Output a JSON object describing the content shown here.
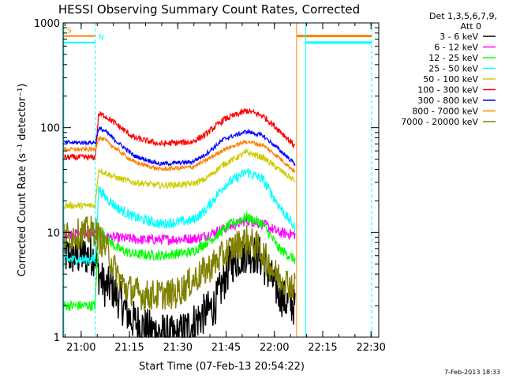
{
  "chart_data": {
    "type": "line",
    "title": "HESSI Observing Summary Count Rates, Corrected",
    "xlabel": "Start Time (07-Feb-13 20:54:22)",
    "ylabel": "Corrected Count Rate (s⁻¹ detector⁻¹)",
    "x_unit": "minutes since 20:54:22",
    "xlim": [
      0,
      98
    ],
    "ylim": [
      1,
      1000
    ],
    "y_scale": "log",
    "grid": false,
    "legend_position": "right",
    "x_ticks": [
      {
        "x": 5.6,
        "label": "21:00"
      },
      {
        "x": 20.6,
        "label": "21:15"
      },
      {
        "x": 35.6,
        "label": "21:30"
      },
      {
        "x": 50.6,
        "label": "21:45"
      },
      {
        "x": 65.6,
        "label": "22:00"
      },
      {
        "x": 80.6,
        "label": "22:15"
      },
      {
        "x": 95.6,
        "label": "22:30"
      }
    ],
    "y_ticks": [
      {
        "y": 1,
        "label": "1"
      },
      {
        "y": 10,
        "label": "10"
      },
      {
        "y": 100,
        "label": "100"
      },
      {
        "y": 1000,
        "label": "1000"
      }
    ],
    "legend_header": [
      "Det 1,3,5,6,7,9,",
      "Att 0"
    ],
    "series": [
      {
        "name": "3 - 6 keV",
        "color": "#000000",
        "noise": 0.2,
        "points": [
          [
            0,
            6
          ],
          [
            10,
            6
          ],
          [
            11,
            4
          ],
          [
            13,
            3
          ],
          [
            15,
            3
          ],
          [
            19,
            1.9
          ],
          [
            21,
            1.5
          ],
          [
            26,
            1.2
          ],
          [
            35,
            1
          ],
          [
            47,
            2
          ],
          [
            52,
            5
          ],
          [
            57,
            6.5
          ],
          [
            61,
            6
          ],
          [
            66,
            3
          ],
          [
            69,
            2.2
          ],
          [
            72,
            2
          ]
        ]
      },
      {
        "name": "6 - 12 keV",
        "color": "#ff00ff",
        "noise": 0.05,
        "points": [
          [
            0,
            9.5
          ],
          [
            11,
            10
          ],
          [
            13,
            9
          ],
          [
            19,
            8.8
          ],
          [
            25,
            8.5
          ],
          [
            35,
            8.6
          ],
          [
            42,
            8.8
          ],
          [
            52,
            11.5
          ],
          [
            57,
            13
          ],
          [
            62,
            12
          ],
          [
            67,
            10
          ],
          [
            72,
            9.5
          ]
        ]
      },
      {
        "name": "12 - 25 keV",
        "color": "#00ff00",
        "noise": 0.05,
        "points": [
          [
            0,
            2
          ],
          [
            10,
            2
          ],
          [
            11,
            11
          ],
          [
            13,
            9
          ],
          [
            17,
            7
          ],
          [
            22,
            6.2
          ],
          [
            30,
            6
          ],
          [
            40,
            6.5
          ],
          [
            47,
            9
          ],
          [
            52,
            12
          ],
          [
            57,
            14
          ],
          [
            62,
            12
          ],
          [
            67,
            7
          ],
          [
            72,
            5.5
          ]
        ]
      },
      {
        "name": "25 - 50 keV",
        "color": "#00ffff",
        "noise": 0.05,
        "points": [
          [
            0,
            5.5
          ],
          [
            10,
            5.5
          ],
          [
            11,
            26
          ],
          [
            13,
            22
          ],
          [
            17,
            17
          ],
          [
            22,
            14
          ],
          [
            30,
            12
          ],
          [
            40,
            13
          ],
          [
            44,
            16
          ],
          [
            50,
            28
          ],
          [
            57,
            38
          ],
          [
            62,
            32
          ],
          [
            67,
            18
          ],
          [
            72,
            11
          ]
        ]
      },
      {
        "name": "50 - 100 keV",
        "color": "#cccc00",
        "noise": 0.03,
        "points": [
          [
            0,
            18
          ],
          [
            10,
            18
          ],
          [
            11,
            40
          ],
          [
            13,
            37
          ],
          [
            17,
            33
          ],
          [
            22,
            30
          ],
          [
            30,
            28
          ],
          [
            40,
            29
          ],
          [
            44,
            32
          ],
          [
            50,
            45
          ],
          [
            57,
            58
          ],
          [
            62,
            52
          ],
          [
            67,
            40
          ],
          [
            72,
            31
          ]
        ]
      },
      {
        "name": "100 - 300 keV",
        "color": "#ff0000",
        "noise": 0.03,
        "points": [
          [
            0,
            52
          ],
          [
            10,
            52
          ],
          [
            11,
            135
          ],
          [
            13,
            130
          ],
          [
            17,
            105
          ],
          [
            22,
            80
          ],
          [
            30,
            70
          ],
          [
            40,
            73
          ],
          [
            44,
            85
          ],
          [
            50,
            120
          ],
          [
            57,
            145
          ],
          [
            62,
            130
          ],
          [
            67,
            95
          ],
          [
            72,
            67
          ]
        ]
      },
      {
        "name": "300 - 800 keV",
        "color": "#0000ff",
        "noise": 0.02,
        "points": [
          [
            0,
            72
          ],
          [
            10,
            72
          ],
          [
            11,
            98
          ],
          [
            13,
            93
          ],
          [
            17,
            72
          ],
          [
            22,
            54
          ],
          [
            30,
            45
          ],
          [
            40,
            47
          ],
          [
            44,
            55
          ],
          [
            50,
            78
          ],
          [
            57,
            92
          ],
          [
            62,
            84
          ],
          [
            67,
            62
          ],
          [
            72,
            45
          ]
        ]
      },
      {
        "name": "800 - 7000 keV",
        "color": "#ff8000",
        "noise": 0.02,
        "points": [
          [
            0,
            62
          ],
          [
            10,
            62
          ],
          [
            11,
            80
          ],
          [
            13,
            76
          ],
          [
            17,
            61
          ],
          [
            22,
            47
          ],
          [
            30,
            40
          ],
          [
            40,
            42
          ],
          [
            44,
            48
          ],
          [
            50,
            62
          ],
          [
            57,
            74
          ],
          [
            62,
            68
          ],
          [
            67,
            52
          ],
          [
            72,
            38
          ]
        ]
      },
      {
        "name": "7000 - 20000 keV",
        "color": "#808000",
        "noise": 0.15,
        "points": [
          [
            0,
            9
          ],
          [
            10,
            10.5
          ],
          [
            11,
            9
          ],
          [
            13,
            7.5
          ],
          [
            16,
            4.5
          ],
          [
            19,
            3
          ],
          [
            25,
            2.5
          ],
          [
            35,
            2.6
          ],
          [
            45,
            4.5
          ],
          [
            52,
            7
          ],
          [
            57,
            8.5
          ],
          [
            61,
            7
          ],
          [
            66,
            4
          ],
          [
            72,
            3
          ]
        ]
      }
    ],
    "segments": [
      {
        "label": "S",
        "x": 0.2,
        "x_end": 10.0,
        "y": 750,
        "color": "#ff8000",
        "dashed": true
      },
      {
        "label": "N",
        "x": 10.0,
        "x_end": 10.0,
        "y": 650,
        "color": "#00ffff",
        "dashed": true
      },
      {
        "label": "",
        "x": 0.2,
        "x_end": 10.0,
        "y": 650,
        "color": "#00ffff",
        "dashed": false
      },
      {
        "label": "",
        "x": 72.5,
        "x_end": 72.5,
        "y": 750,
        "color": "#ff8000",
        "dashed": false
      },
      {
        "label": "",
        "x": 75.3,
        "x_end": 75.3,
        "y": 650,
        "color": "#00ffff",
        "dashed": false
      },
      {
        "label": "",
        "x": 95.8,
        "x_end": 95.8,
        "y": 650,
        "color": "#00ffff",
        "dashed": true
      }
    ],
    "attenuator_bars": [
      {
        "x0": 72.5,
        "x1": 95.8,
        "y": 750,
        "color": "#ff8000"
      },
      {
        "x0": 75.3,
        "x1": 95.8,
        "y": 650,
        "color": "#00ffff"
      }
    ],
    "stamp": "7-Feb-2013 18:33"
  }
}
